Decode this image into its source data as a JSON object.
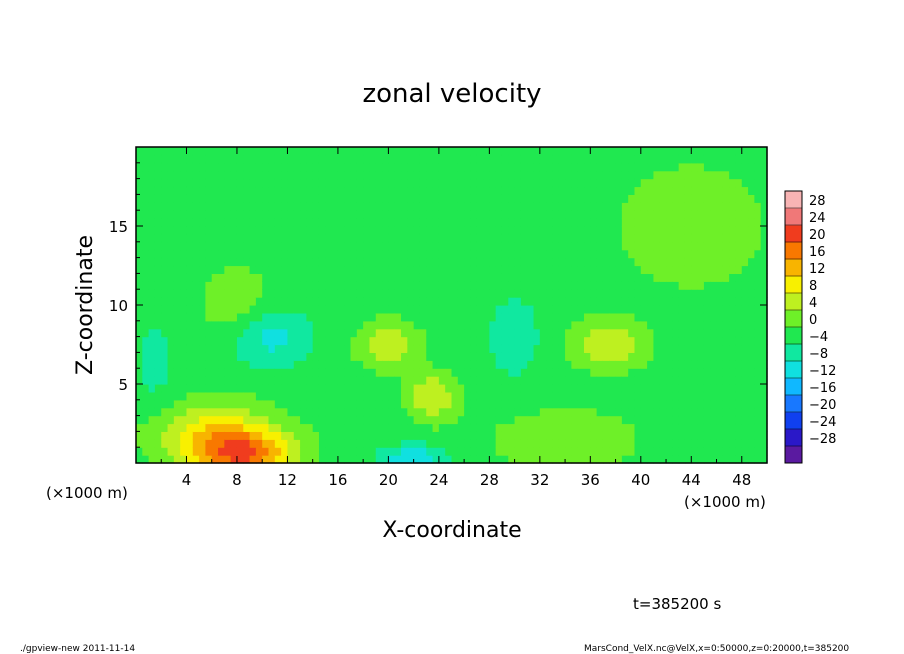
{
  "chart_data": {
    "type": "heatmap",
    "title": "zonal velocity",
    "xlabel": "X-coordinate",
    "ylabel": "Z-coordinate",
    "x_unit_note": "(×1000 m)",
    "y_unit_note": "(×1000 m)",
    "xlim": [
      0,
      50
    ],
    "ylim": [
      0,
      20
    ],
    "x_ticks": [
      4,
      8,
      12,
      16,
      20,
      24,
      28,
      32,
      36,
      40,
      44,
      48
    ],
    "y_ticks": [
      5,
      10,
      15
    ],
    "colorbar": {
      "levels": [
        -28,
        -24,
        -20,
        -16,
        -12,
        -8,
        -4,
        0,
        4,
        8,
        12,
        16,
        20,
        24,
        28
      ],
      "labels": [
        "28",
        "24",
        "20",
        "16",
        "12",
        "8",
        "4",
        "0",
        "−4",
        "−8",
        "−12",
        "−16",
        "−20",
        "−24",
        "−28"
      ],
      "colors": [
        "#5a1aa0",
        "#2a18c8",
        "#1040f0",
        "#1878ff",
        "#10b8ff",
        "#10e0e0",
        "#10e8a0",
        "#20e850",
        "#6ef028",
        "#bef020",
        "#f8f000",
        "#f8b400",
        "#f87800",
        "#f03c1e",
        "#f07878",
        "#f8b4b4"
      ]
    },
    "background_value": -2,
    "features": [
      {
        "x": 10.5,
        "z": 8.0,
        "sx": 3.2,
        "sz": 1.8,
        "value": -10
      },
      {
        "x": 8.0,
        "z": 10.0,
        "sx": 3.0,
        "sz": 2.5,
        "value": 3
      },
      {
        "x": 8.5,
        "z": 0.5,
        "sx": 4.0,
        "sz": 1.6,
        "value": 17
      },
      {
        "x": 6.0,
        "z": 2.0,
        "sx": 5.0,
        "sz": 2.0,
        "value": 9
      },
      {
        "x": 20.0,
        "z": 7.5,
        "sx": 2.5,
        "sz": 1.5,
        "value": 7
      },
      {
        "x": 23.5,
        "z": 4.2,
        "sx": 2.0,
        "sz": 1.5,
        "value": 8
      },
      {
        "x": 22.0,
        "z": 0.2,
        "sx": 2.5,
        "sz": 0.9,
        "value": -12
      },
      {
        "x": 30.0,
        "z": 8.0,
        "sx": 2.0,
        "sz": 2.5,
        "value": -7
      },
      {
        "x": 37.5,
        "z": 7.5,
        "sx": 3.0,
        "sz": 1.6,
        "value": 7
      },
      {
        "x": 1.5,
        "z": 6.0,
        "sx": 2.0,
        "sz": 4.0,
        "value": -5
      },
      {
        "x": 44.0,
        "z": 15.0,
        "sx": 6.0,
        "sz": 4.0,
        "value": 3
      },
      {
        "x": 34.0,
        "z": 1.5,
        "sx": 6.0,
        "sz": 2.0,
        "value": 3
      }
    ],
    "time_label": "t=385200 s",
    "footer_left": "./gpview-new  2011-11-14",
    "footer_right": "MarsCond_VelX.nc@VelX,x=0:50000,z=0:20000,t=385200"
  }
}
